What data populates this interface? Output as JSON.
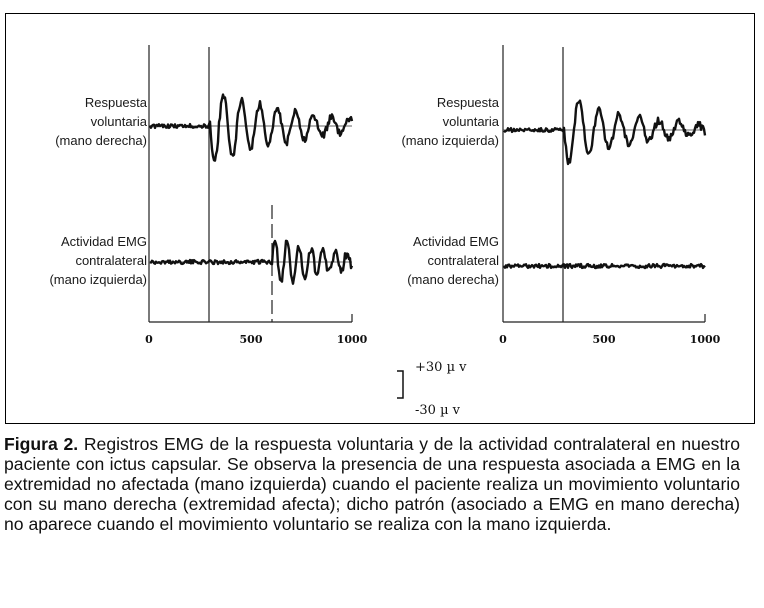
{
  "figure": {
    "panels": [
      {
        "upper_label": [
          "Respuesta",
          "voluntaria",
          "(mano derecha)"
        ],
        "lower_label": [
          "Actividad EMG",
          "contralateral",
          "(mano izquierda)"
        ],
        "x_ticks": [
          "0",
          "500",
          "1000"
        ]
      },
      {
        "upper_label": [
          "Respuesta",
          "voluntaria",
          "(mano izquierda)"
        ],
        "lower_label": [
          "Actividad EMG",
          "contralateral",
          "(mano derecha)"
        ],
        "x_ticks": [
          "0",
          "500",
          "1000"
        ]
      }
    ],
    "scale_bar": {
      "top": "+30 µ v",
      "bottom": "-30 µ v"
    }
  },
  "caption": {
    "label": "Figura 2.",
    "text": " Registros EMG de la respuesta voluntaria y de la actividad contralateral en nuestro paciente con ictus capsular. Se observa la presencia de una respuesta asociada a EMG en la extremidad no afectada (mano izquierda) cuando el paciente realiza un movimiento voluntario con su mano derecha (extremidad afecta); dicho patrón (asociado a EMG en mano derecha) no aparece cuando el movimiento voluntario se realiza con la mano izquierda."
  }
}
